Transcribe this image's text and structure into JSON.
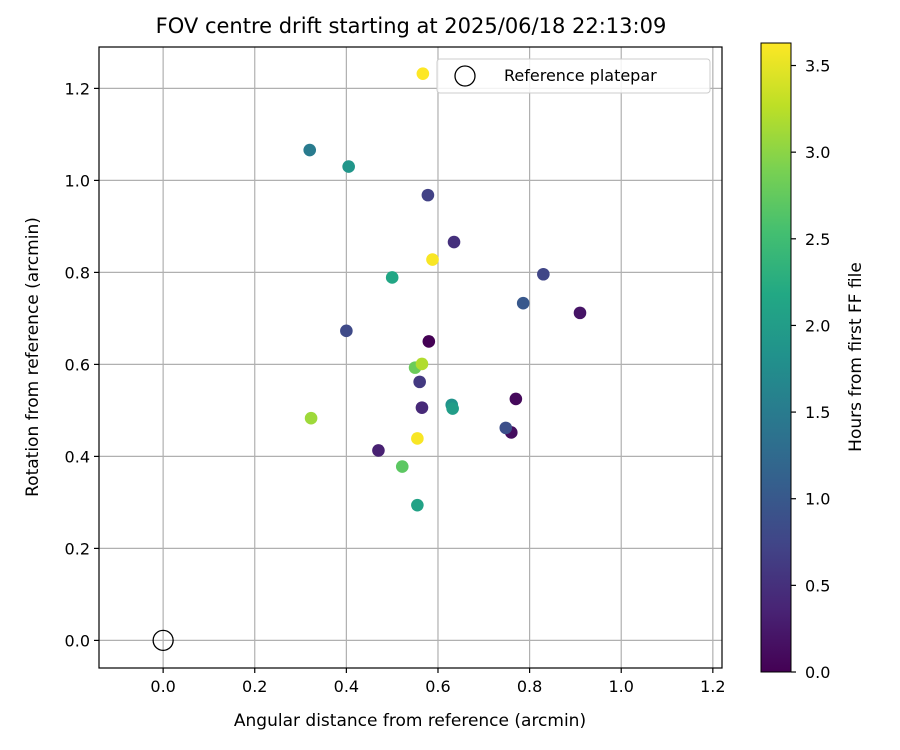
{
  "chart_data": {
    "type": "scatter",
    "title": "FOV centre drift starting at 2025/06/18 22:13:09",
    "xlabel": "Angular distance from reference (arcmin)",
    "ylabel": "Rotation from reference (arcmin)",
    "xlim": [
      -0.14,
      1.22
    ],
    "ylim": [
      -0.06,
      1.29
    ],
    "xticks": [
      0.0,
      0.2,
      0.4,
      0.6,
      0.8,
      1.0,
      1.2
    ],
    "xtick_labels": [
      "0.0",
      "0.2",
      "0.4",
      "0.6",
      "0.8",
      "1.0",
      "1.2"
    ],
    "yticks": [
      0.0,
      0.2,
      0.4,
      0.6,
      0.8,
      1.0,
      1.2
    ],
    "ytick_labels": [
      "0.0",
      "0.2",
      "0.4",
      "0.6",
      "0.8",
      "1.0",
      "1.2"
    ],
    "grid": true,
    "legend": {
      "placement": "top-right",
      "entries": [
        {
          "label": "Reference platepar",
          "marker": "open-circle"
        }
      ]
    },
    "reference_point": {
      "x": 0.0,
      "y": 0.0
    },
    "colorbar": {
      "label": "Hours from first FF file",
      "colormap": "viridis",
      "range": [
        0.0,
        3.63
      ],
      "ticks": [
        0.0,
        0.5,
        1.0,
        1.5,
        2.0,
        2.5,
        3.0,
        3.5
      ],
      "tick_labels": [
        "0.0",
        "0.5",
        "1.0",
        "1.5",
        "2.0",
        "2.5",
        "3.0",
        "3.5"
      ]
    },
    "points": [
      {
        "x": 0.58,
        "y": 0.65,
        "hours": 0.0
      },
      {
        "x": 0.77,
        "y": 0.525,
        "hours": 0.08
      },
      {
        "x": 0.76,
        "y": 0.452,
        "hours": 0.12
      },
      {
        "x": 0.91,
        "y": 0.712,
        "hours": 0.2
      },
      {
        "x": 0.47,
        "y": 0.413,
        "hours": 0.33
      },
      {
        "x": 0.565,
        "y": 0.506,
        "hours": 0.42
      },
      {
        "x": 0.635,
        "y": 0.866,
        "hours": 0.5
      },
      {
        "x": 0.56,
        "y": 0.562,
        "hours": 0.6
      },
      {
        "x": 0.578,
        "y": 0.968,
        "hours": 0.7
      },
      {
        "x": 0.83,
        "y": 0.796,
        "hours": 0.75
      },
      {
        "x": 0.4,
        "y": 0.673,
        "hours": 0.8
      },
      {
        "x": 0.748,
        "y": 0.462,
        "hours": 0.88
      },
      {
        "x": 0.786,
        "y": 0.733,
        "hours": 1.0
      },
      {
        "x": 0.32,
        "y": 1.066,
        "hours": 1.5
      },
      {
        "x": 0.63,
        "y": 0.512,
        "hours": 1.85
      },
      {
        "x": 0.405,
        "y": 1.03,
        "hours": 1.9
      },
      {
        "x": 0.632,
        "y": 0.504,
        "hours": 2.0
      },
      {
        "x": 0.555,
        "y": 0.294,
        "hours": 2.08
      },
      {
        "x": 0.5,
        "y": 0.789,
        "hours": 2.15
      },
      {
        "x": 0.522,
        "y": 0.378,
        "hours": 2.7
      },
      {
        "x": 0.55,
        "y": 0.593,
        "hours": 2.8
      },
      {
        "x": 0.323,
        "y": 0.483,
        "hours": 3.1
      },
      {
        "x": 0.565,
        "y": 0.601,
        "hours": 3.2
      },
      {
        "x": 0.588,
        "y": 0.828,
        "hours": 3.6
      },
      {
        "x": 0.555,
        "y": 0.439,
        "hours": 3.6
      },
      {
        "x": 0.567,
        "y": 1.232,
        "hours": 3.63
      }
    ]
  }
}
